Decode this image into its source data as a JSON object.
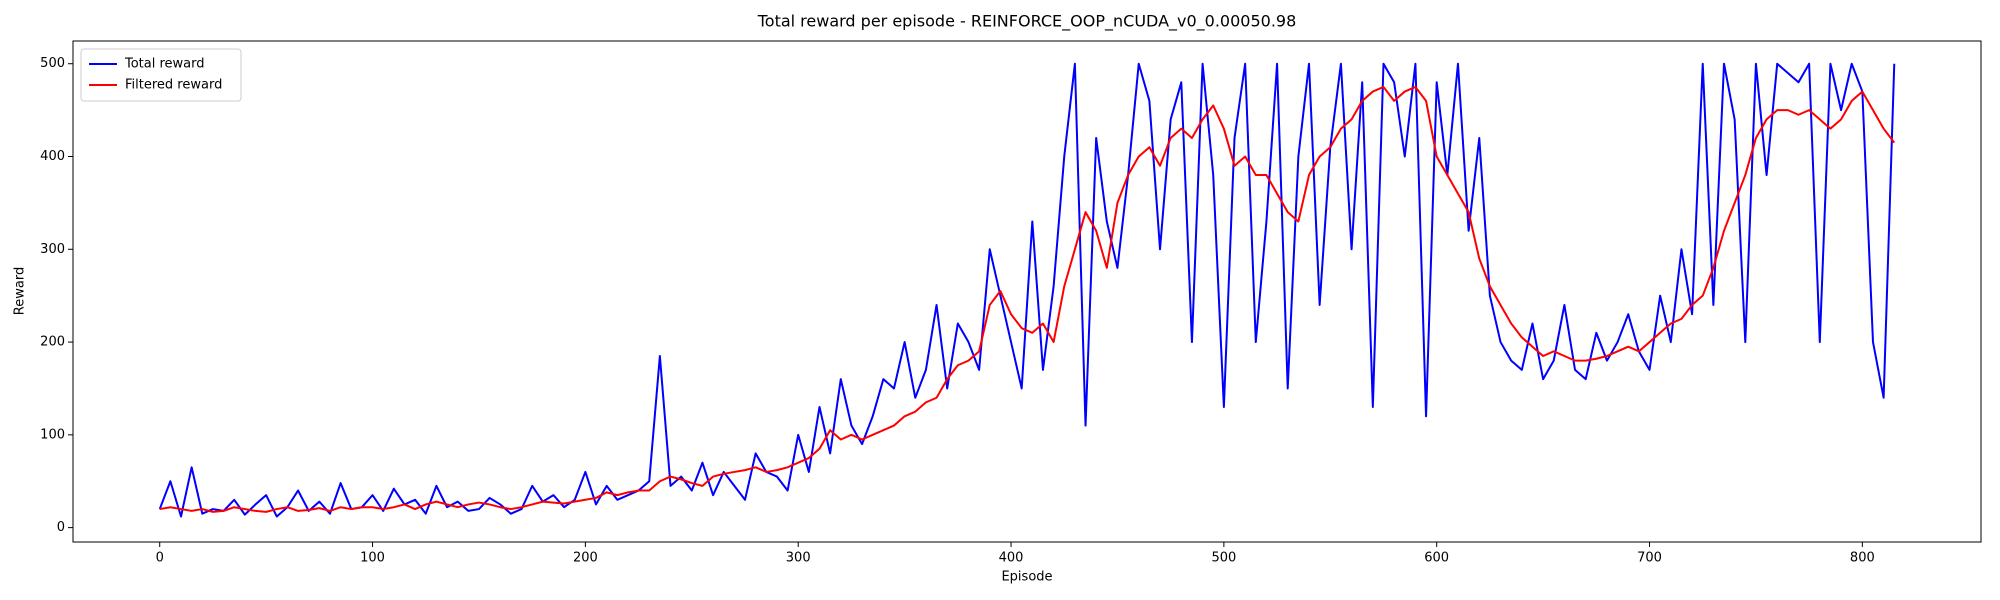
{
  "chart_data": {
    "type": "line",
    "title": "Total reward per episode - REINFORCE_OOP_nCUDA_v0_0.00050.98",
    "xlabel": "Episode",
    "ylabel": "Reward",
    "x": [
      0,
      5,
      10,
      15,
      20,
      25,
      30,
      35,
      40,
      45,
      50,
      55,
      60,
      65,
      70,
      75,
      80,
      85,
      90,
      95,
      100,
      105,
      110,
      115,
      120,
      125,
      130,
      135,
      140,
      145,
      150,
      155,
      160,
      165,
      170,
      175,
      180,
      185,
      190,
      195,
      200,
      205,
      210,
      215,
      220,
      225,
      230,
      235,
      240,
      245,
      250,
      255,
      260,
      265,
      270,
      275,
      280,
      285,
      290,
      295,
      300,
      305,
      310,
      315,
      320,
      325,
      330,
      335,
      340,
      345,
      350,
      355,
      360,
      365,
      370,
      375,
      380,
      385,
      390,
      395,
      400,
      405,
      410,
      415,
      420,
      425,
      430,
      435,
      440,
      445,
      450,
      455,
      460,
      465,
      470,
      475,
      480,
      485,
      490,
      495,
      500,
      505,
      510,
      515,
      520,
      525,
      530,
      535,
      540,
      545,
      550,
      555,
      560,
      565,
      570,
      575,
      580,
      585,
      590,
      595,
      600,
      605,
      610,
      615,
      620,
      625,
      630,
      635,
      640,
      645,
      650,
      655,
      660,
      665,
      670,
      675,
      680,
      685,
      690,
      695,
      700,
      705,
      710,
      715,
      720,
      725,
      730,
      735,
      740,
      745,
      750,
      755,
      760,
      765,
      770,
      775,
      780,
      785,
      790,
      795,
      800,
      805,
      810,
      815
    ],
    "series": [
      {
        "name": "Total reward",
        "color": "#0000ff",
        "values": [
          20,
          50,
          12,
          65,
          15,
          20,
          18,
          30,
          14,
          25,
          35,
          12,
          22,
          40,
          18,
          28,
          15,
          48,
          20,
          22,
          35,
          18,
          42,
          25,
          30,
          15,
          45,
          22,
          28,
          18,
          20,
          32,
          25,
          15,
          20,
          45,
          28,
          35,
          22,
          30,
          60,
          25,
          45,
          30,
          35,
          40,
          50,
          185,
          45,
          55,
          40,
          70,
          35,
          60,
          45,
          30,
          80,
          60,
          55,
          40,
          100,
          60,
          130,
          80,
          160,
          110,
          90,
          120,
          160,
          150,
          200,
          140,
          170,
          240,
          150,
          220,
          200,
          170,
          300,
          250,
          200,
          150,
          330,
          170,
          260,
          400,
          500,
          110,
          420,
          330,
          280,
          380,
          500,
          460,
          300,
          440,
          480,
          200,
          500,
          380,
          130,
          420,
          500,
          200,
          330,
          500,
          150,
          400,
          500,
          240,
          410,
          500,
          300,
          480,
          130,
          500,
          480,
          400,
          500,
          120,
          480,
          380,
          500,
          320,
          420,
          250,
          200,
          180,
          170,
          220,
          160,
          180,
          240,
          170,
          160,
          210,
          180,
          200,
          230,
          190,
          170,
          250,
          200,
          300,
          230,
          500,
          240,
          500,
          440,
          200,
          500,
          380,
          500,
          490,
          480,
          500,
          200,
          500,
          450,
          500,
          470,
          200,
          140,
          500
        ]
      },
      {
        "name": "Filtered reward",
        "color": "#ff0000",
        "values": [
          20,
          22,
          20,
          18,
          20,
          17,
          18,
          22,
          20,
          18,
          17,
          20,
          22,
          18,
          19,
          21,
          18,
          22,
          20,
          22,
          22,
          20,
          22,
          25,
          20,
          25,
          28,
          25,
          22,
          25,
          27,
          25,
          22,
          20,
          22,
          25,
          28,
          27,
          26,
          28,
          30,
          32,
          38,
          35,
          38,
          40,
          40,
          50,
          55,
          52,
          48,
          45,
          55,
          58,
          60,
          62,
          65,
          60,
          62,
          65,
          70,
          75,
          85,
          105,
          95,
          100,
          95,
          100,
          105,
          110,
          120,
          125,
          135,
          140,
          160,
          175,
          180,
          190,
          240,
          255,
          230,
          215,
          210,
          220,
          200,
          260,
          300,
          340,
          320,
          280,
          350,
          380,
          400,
          410,
          390,
          420,
          430,
          420,
          440,
          455,
          430,
          390,
          400,
          380,
          380,
          360,
          340,
          330,
          380,
          400,
          410,
          430,
          440,
          460,
          470,
          475,
          460,
          470,
          475,
          460,
          400,
          380,
          360,
          340,
          290,
          260,
          240,
          220,
          205,
          195,
          185,
          190,
          185,
          180,
          180,
          182,
          185,
          190,
          195,
          190,
          200,
          210,
          220,
          225,
          240,
          250,
          280,
          320,
          350,
          380,
          420,
          440,
          450,
          450,
          445,
          450,
          440,
          430,
          440,
          460,
          470,
          450,
          430,
          415
        ]
      }
    ],
    "xlim": [
      -40.75,
      855.75
    ],
    "ylim": [
      -15.5,
      524.5
    ],
    "xticks": [
      0,
      100,
      200,
      300,
      400,
      500,
      600,
      700,
      800
    ],
    "yticks": [
      0,
      100,
      200,
      300,
      400,
      500
    ],
    "legend": "upper left"
  }
}
